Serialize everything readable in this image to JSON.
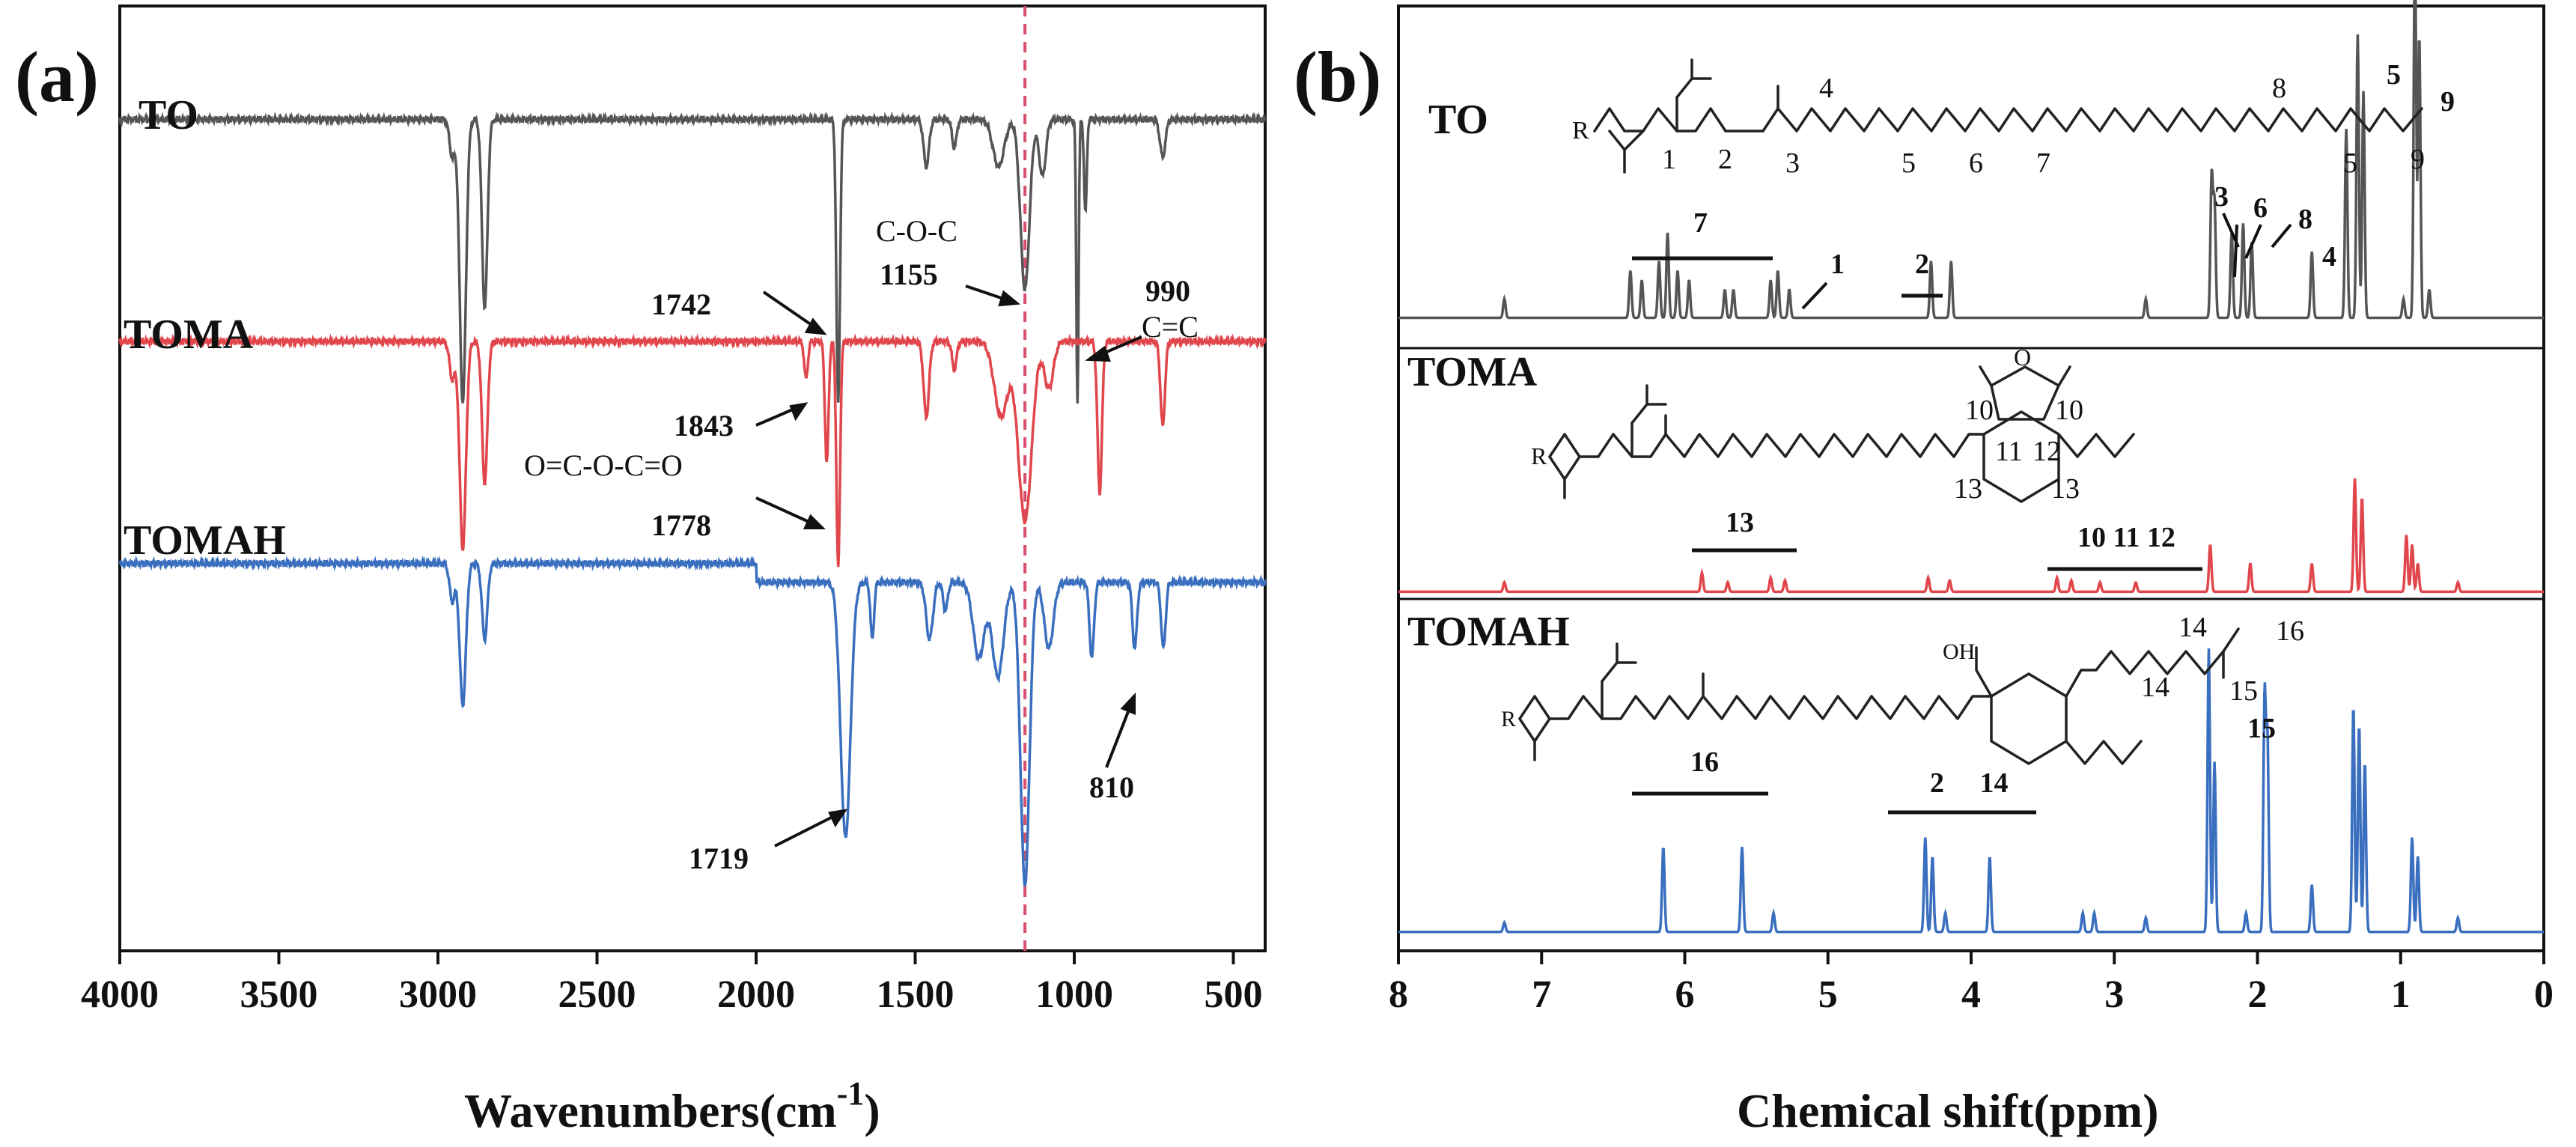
{
  "colors": {
    "TO": "#555555",
    "TOMA": "#e0464b",
    "TOMAH": "#3a6fbf",
    "guide": "#d9506e",
    "axis": "#111111"
  },
  "chart_data": [
    {
      "id": "a",
      "panel_label": "(a)",
      "type": "line",
      "title": "",
      "xlabel": "Wavenumbers(cm",
      "xlabel_sup": "-1",
      "xlabel_tail": ")",
      "ylabel": "",
      "xlim": [
        4000,
        400
      ],
      "xticks": [
        4000,
        3500,
        3000,
        2500,
        2000,
        1500,
        1000,
        500
      ],
      "xtick_labels": [
        "4000",
        "3500",
        "3000",
        "2500",
        "2000",
        "1500",
        "1000",
        "500"
      ],
      "guide_line_x": 1155,
      "series": [
        {
          "name": "TO",
          "label": "TO",
          "color": "#555555",
          "baseline": 0.12,
          "amp": 1,
          "bands": [
            [
              2955,
              0.04,
              12
            ],
            [
              2922,
              0.3,
              14
            ],
            [
              2853,
              0.2,
              12
            ],
            [
              1742,
              0.3,
              8
            ],
            [
              1465,
              0.05,
              12
            ],
            [
              1377,
              0.03,
              10
            ],
            [
              1238,
              0.05,
              25
            ],
            [
              1155,
              0.18,
              20
            ],
            [
              1100,
              0.06,
              15
            ],
            [
              990,
              0.3,
              5
            ],
            [
              965,
              0.1,
              6
            ],
            [
              722,
              0.04,
              12
            ]
          ]
        },
        {
          "name": "TOMA",
          "label": "TOMA",
          "color": "#e0464b",
          "baseline": 0.355,
          "amp": 1,
          "bands": [
            [
              2955,
              0.04,
              12
            ],
            [
              2922,
              0.22,
              14
            ],
            [
              2853,
              0.15,
              12
            ],
            [
              1843,
              0.04,
              8
            ],
            [
              1778,
              0.13,
              8
            ],
            [
              1742,
              0.24,
              8
            ],
            [
              1465,
              0.08,
              12
            ],
            [
              1377,
              0.03,
              10
            ],
            [
              1230,
              0.08,
              30
            ],
            [
              1155,
              0.19,
              30
            ],
            [
              1080,
              0.05,
              20
            ],
            [
              920,
              0.16,
              10
            ],
            [
              722,
              0.09,
              10
            ]
          ]
        },
        {
          "name": "TOMAH",
          "label": "TOMAH",
          "color": "#3a6fbf",
          "baseline": 0.59,
          "amp": 1,
          "bands": [
            [
              2955,
              0.04,
              12
            ],
            [
              2922,
              0.15,
              14
            ],
            [
              2853,
              0.08,
              12
            ],
            [
              1719,
              0.27,
              22
            ],
            [
              1635,
              0.06,
              8
            ],
            [
              1455,
              0.06,
              15
            ],
            [
              1405,
              0.03,
              10
            ],
            [
              1300,
              0.08,
              25
            ],
            [
              1240,
              0.1,
              25
            ],
            [
              1155,
              0.32,
              20
            ],
            [
              1080,
              0.07,
              20
            ],
            [
              945,
              0.08,
              10
            ],
            [
              810,
              0.07,
              10
            ],
            [
              720,
              0.07,
              10
            ]
          ]
        }
      ],
      "annotations": [
        {
          "text": "1742",
          "x": 1742,
          "series": "TO"
        },
        {
          "text": "C-O-C",
          "x": 1155,
          "series": "TO"
        },
        {
          "text": "1155",
          "x": 1155,
          "series": "TO"
        },
        {
          "text": "990",
          "x": 990,
          "series": "TO"
        },
        {
          "text": "C=C",
          "x": 990,
          "series": "TO"
        },
        {
          "text": "1843",
          "x": 1843,
          "series": "TOMA"
        },
        {
          "text": "O=C-O-C=O",
          "x": 1778,
          "series": "TOMA"
        },
        {
          "text": "1778",
          "x": 1778,
          "series": "TOMA"
        },
        {
          "text": "1719",
          "x": 1719,
          "series": "TOMAH"
        },
        {
          "text": "810",
          "x": 810,
          "series": "TOMAH"
        }
      ]
    },
    {
      "id": "b",
      "panel_label": "(b)",
      "type": "line",
      "title": "",
      "xlabel": "Chemical shift(ppm)",
      "ylabel": "",
      "xlim": [
        8,
        0
      ],
      "xticks": [
        8,
        7,
        6,
        5,
        4,
        3,
        2,
        1,
        0
      ],
      "xtick_labels": [
        "8",
        "7",
        "6",
        "5",
        "4",
        "3",
        "2",
        "1",
        "0"
      ],
      "series": [
        {
          "name": "TO",
          "label": "TO",
          "color": "#555555",
          "baseline": 0.33,
          "amp": 1,
          "peaks": [
            [
              7.26,
              0.02
            ],
            [
              6.38,
              0.05
            ],
            [
              6.3,
              0.04
            ],
            [
              6.18,
              0.06
            ],
            [
              6.12,
              0.09
            ],
            [
              6.05,
              0.05
            ],
            [
              5.97,
              0.04
            ],
            [
              5.72,
              0.03
            ],
            [
              5.66,
              0.03
            ],
            [
              5.4,
              0.04
            ],
            [
              5.35,
              0.05
            ],
            [
              5.27,
              0.03
            ],
            [
              4.28,
              0.06
            ],
            [
              4.14,
              0.06
            ],
            [
              2.78,
              0.02
            ],
            [
              2.32,
              0.15
            ],
            [
              2.3,
              0.12
            ],
            [
              2.18,
              0.09
            ],
            [
              2.1,
              0.1
            ],
            [
              2.04,
              0.08
            ],
            [
              1.62,
              0.07
            ],
            [
              1.38,
              0.2
            ],
            [
              1.3,
              0.3
            ],
            [
              1.26,
              0.24
            ],
            [
              0.98,
              0.02
            ],
            [
              0.9,
              0.4
            ],
            [
              0.87,
              0.3
            ],
            [
              0.8,
              0.03
            ]
          ]
        },
        {
          "name": "TOMA",
          "label": "TOMA",
          "color": "#e0464b",
          "baseline": 0.62,
          "amp": 1,
          "peaks": [
            [
              7.26,
              0.01
            ],
            [
              5.88,
              0.02
            ],
            [
              5.7,
              0.01
            ],
            [
              5.4,
              0.015
            ],
            [
              5.3,
              0.012
            ],
            [
              4.3,
              0.015
            ],
            [
              4.15,
              0.012
            ],
            [
              3.4,
              0.015
            ],
            [
              3.3,
              0.012
            ],
            [
              3.1,
              0.01
            ],
            [
              2.85,
              0.01
            ],
            [
              2.33,
              0.05
            ],
            [
              2.05,
              0.03
            ],
            [
              1.62,
              0.03
            ],
            [
              1.32,
              0.12
            ],
            [
              1.27,
              0.1
            ],
            [
              0.96,
              0.06
            ],
            [
              0.92,
              0.05
            ],
            [
              0.88,
              0.03
            ],
            [
              0.6,
              0.01
            ]
          ]
        },
        {
          "name": "TOMAH",
          "label": "TOMAH",
          "color": "#3a6fbf",
          "baseline": 0.98,
          "amp": 1,
          "peaks": [
            [
              7.26,
              0.01
            ],
            [
              6.15,
              0.09
            ],
            [
              5.6,
              0.09
            ],
            [
              5.38,
              0.02
            ],
            [
              4.32,
              0.1
            ],
            [
              4.27,
              0.08
            ],
            [
              4.18,
              0.02
            ],
            [
              3.87,
              0.08
            ],
            [
              3.22,
              0.02
            ],
            [
              3.14,
              0.02
            ],
            [
              2.78,
              0.015
            ],
            [
              2.34,
              0.3
            ],
            [
              2.3,
              0.18
            ],
            [
              2.08,
              0.02
            ],
            [
              1.95,
              0.25
            ],
            [
              1.93,
              0.2
            ],
            [
              1.62,
              0.05
            ],
            [
              1.33,
              0.24
            ],
            [
              1.29,
              0.22
            ],
            [
              1.25,
              0.18
            ],
            [
              0.92,
              0.1
            ],
            [
              0.88,
              0.08
            ],
            [
              0.6,
              0.015
            ]
          ]
        }
      ],
      "annotations": {
        "TO": {
          "range_7": "7",
          "range_2": "2",
          "peak_1": "1",
          "peak_3": "3",
          "peak_6": "6",
          "peak_8": "8",
          "peak_4": "4",
          "peak_5": "5",
          "peak_9": "9"
        },
        "TOMA": {
          "range_13": "13",
          "range_101112": "10 11 12"
        },
        "TOMAH": {
          "range_16": "16",
          "range_2_14": "2     14",
          "peak_15": "15"
        }
      },
      "structures": {
        "TO": {
          "R": "R",
          "n1": "1",
          "n2": "2",
          "n3": "3",
          "n4": "4",
          "n5": "5",
          "n6": "6",
          "n7": "7",
          "n8": "8",
          "n5b": "5",
          "n9": "9"
        },
        "TOMA": {
          "R": "R",
          "O1": "O",
          "n10a": "10",
          "n10b": "10",
          "n11": "11",
          "n12": "12",
          "n13a": "13",
          "n13b": "13"
        },
        "TOMAH": {
          "R": "R",
          "OH": "OH",
          "n14a": "14",
          "n14b": "14",
          "n15": "15",
          "n16": "16"
        }
      }
    }
  ]
}
